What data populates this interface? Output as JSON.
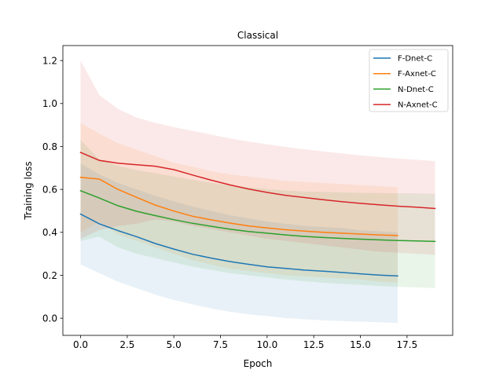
{
  "chart_data": {
    "type": "line",
    "title": "Classical",
    "xlabel": "Epoch",
    "ylabel": "Training loss",
    "xlim": [
      -0.95,
      19.95
    ],
    "ylim": [
      -0.08,
      1.27
    ],
    "xticks": [
      0.0,
      2.5,
      5.0,
      7.5,
      10.0,
      12.5,
      15.0,
      17.5
    ],
    "xtick_labels": [
      "0.0",
      "2.5",
      "5.0",
      "7.5",
      "10.0",
      "12.5",
      "15.0",
      "17.5"
    ],
    "yticks": [
      0.0,
      0.2,
      0.4,
      0.6,
      0.8,
      1.0,
      1.2
    ],
    "ytick_labels": [
      "0.0",
      "0.2",
      "0.4",
      "0.6",
      "0.8",
      "1.0",
      "1.2"
    ],
    "grid": false,
    "legend_position": "top-right",
    "series": [
      {
        "name": "F-Dnet-C",
        "color": "#1f77b4",
        "x": [
          0,
          1,
          2,
          3,
          4,
          5,
          6,
          7,
          8,
          9,
          10,
          11,
          12,
          13,
          14,
          15,
          16,
          17
        ],
        "values": [
          0.485,
          0.44,
          0.408,
          0.38,
          0.348,
          0.322,
          0.298,
          0.28,
          0.264,
          0.251,
          0.239,
          0.232,
          0.224,
          0.219,
          0.213,
          0.207,
          0.201,
          0.197
        ],
        "lower": [
          0.25,
          0.21,
          0.17,
          0.14,
          0.11,
          0.085,
          0.065,
          0.045,
          0.03,
          0.018,
          0.01,
          0.0,
          -0.005,
          -0.01,
          -0.013,
          -0.016,
          -0.019,
          -0.022
        ],
        "upper": [
          0.72,
          0.67,
          0.63,
          0.6,
          0.57,
          0.545,
          0.52,
          0.5,
          0.48,
          0.465,
          0.45,
          0.44,
          0.43,
          0.425,
          0.42,
          0.41,
          0.405,
          0.4
        ]
      },
      {
        "name": "F-Axnet-C",
        "color": "#ff7f0e",
        "x": [
          0,
          1,
          2,
          3,
          4,
          5,
          6,
          7,
          8,
          9,
          10,
          11,
          12,
          13,
          14,
          15,
          16,
          17
        ],
        "values": [
          0.656,
          0.648,
          0.6,
          0.563,
          0.527,
          0.499,
          0.475,
          0.458,
          0.443,
          0.43,
          0.42,
          0.412,
          0.406,
          0.4,
          0.396,
          0.392,
          0.388,
          0.385
        ],
        "lower": [
          0.4,
          0.45,
          0.39,
          0.36,
          0.33,
          0.3,
          0.27,
          0.25,
          0.23,
          0.22,
          0.21,
          0.2,
          0.195,
          0.19,
          0.185,
          0.18,
          0.17,
          0.165
        ],
        "upper": [
          0.91,
          0.86,
          0.815,
          0.785,
          0.755,
          0.725,
          0.705,
          0.685,
          0.67,
          0.66,
          0.65,
          0.64,
          0.635,
          0.63,
          0.625,
          0.62,
          0.615,
          0.61
        ]
      },
      {
        "name": "N-Dnet-C",
        "color": "#2ca02c",
        "x": [
          0,
          1,
          2,
          3,
          4,
          5,
          6,
          7,
          8,
          9,
          10,
          11,
          12,
          13,
          14,
          15,
          16,
          17,
          18,
          19
        ],
        "values": [
          0.594,
          0.56,
          0.524,
          0.498,
          0.478,
          0.459,
          0.442,
          0.428,
          0.415,
          0.404,
          0.396,
          0.388,
          0.381,
          0.376,
          0.372,
          0.368,
          0.365,
          0.362,
          0.36,
          0.358
        ],
        "lower": [
          0.36,
          0.38,
          0.33,
          0.3,
          0.28,
          0.26,
          0.24,
          0.225,
          0.21,
          0.2,
          0.19,
          0.18,
          0.172,
          0.165,
          0.16,
          0.155,
          0.15,
          0.146,
          0.143,
          0.14
        ],
        "upper": [
          0.83,
          0.74,
          0.71,
          0.69,
          0.675,
          0.66,
          0.645,
          0.63,
          0.62,
          0.61,
          0.6,
          0.595,
          0.59,
          0.588,
          0.586,
          0.584,
          0.583,
          0.582,
          0.581,
          0.58
        ]
      },
      {
        "name": "N-Axnet-C",
        "color": "#d62728",
        "x": [
          0,
          1,
          2,
          3,
          4,
          5,
          6,
          7,
          8,
          9,
          10,
          11,
          12,
          13,
          14,
          15,
          16,
          17,
          18,
          19
        ],
        "values": [
          0.772,
          0.735,
          0.722,
          0.715,
          0.708,
          0.692,
          0.667,
          0.643,
          0.621,
          0.602,
          0.586,
          0.572,
          0.562,
          0.552,
          0.543,
          0.535,
          0.528,
          0.522,
          0.517,
          0.511
        ],
        "lower": [
          0.37,
          0.41,
          0.43,
          0.44,
          0.46,
          0.45,
          0.43,
          0.415,
          0.4,
          0.385,
          0.37,
          0.36,
          0.35,
          0.34,
          0.33,
          0.32,
          0.31,
          0.305,
          0.3,
          0.295
        ],
        "upper": [
          1.2,
          1.04,
          0.975,
          0.935,
          0.91,
          0.89,
          0.873,
          0.855,
          0.838,
          0.823,
          0.81,
          0.798,
          0.787,
          0.777,
          0.768,
          0.759,
          0.751,
          0.744,
          0.738,
          0.732
        ]
      }
    ]
  }
}
